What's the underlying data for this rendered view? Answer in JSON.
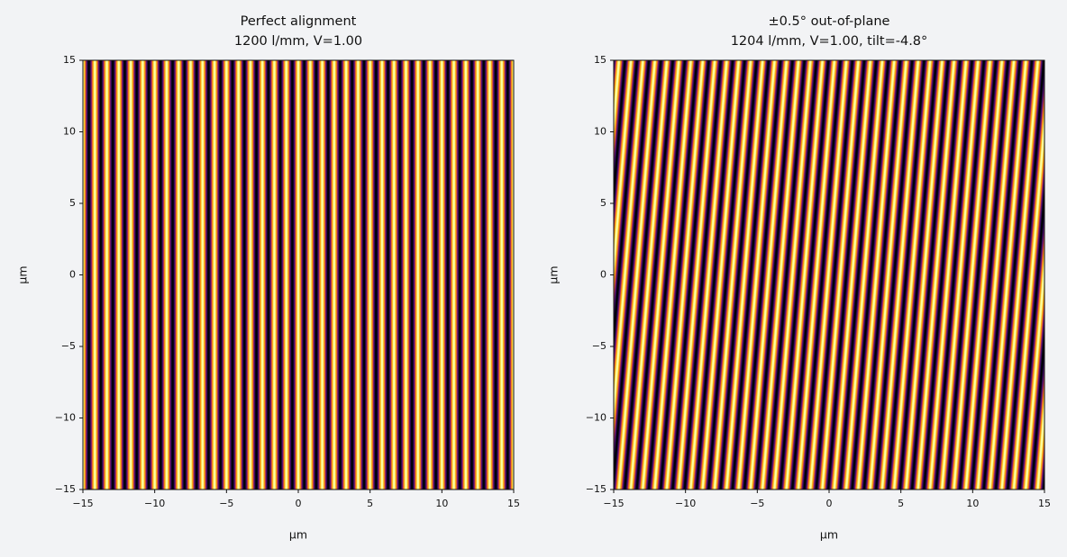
{
  "chart_data": [
    {
      "type": "fringe",
      "title": [
        "Perfect alignment",
        "1200 l/mm, V=1.00"
      ],
      "density": 1200,
      "visibility": 1.0,
      "xlabel": "µm",
      "ylabel": "µm",
      "xlim": [
        -15,
        15
      ],
      "ylim": [
        -15,
        15
      ],
      "xticks": [
        {
          "value": -15,
          "label": "−15"
        },
        {
          "value": -10,
          "label": "−10"
        },
        {
          "value": -5,
          "label": "−5"
        },
        0,
        5,
        10,
        15
      ],
      "yticks": [
        {
          "value": -15,
          "label": "−15"
        },
        {
          "value": -10,
          "label": "−10"
        },
        {
          "value": -5,
          "label": "−5"
        },
        0,
        5,
        10,
        15
      ]
    },
    {
      "type": "fringe",
      "title": [
        "±0.5° out-of-plane",
        "1204 l/mm, V=1.00, tilt=-4.8°"
      ],
      "density": 1204,
      "visibility": 1.0,
      "tilt": -4.8,
      "xlabel": "µm",
      "ylabel": "µm",
      "xlim": [
        -15,
        15
      ],
      "ylim": [
        -15,
        15
      ],
      "xticks": [
        {
          "value": -15,
          "label": "−15"
        },
        {
          "value": -10,
          "label": "−10"
        },
        {
          "value": -5,
          "label": "−5"
        },
        0,
        5,
        10,
        15
      ],
      "yticks": [
        {
          "value": -15,
          "label": "−15"
        },
        {
          "value": -10,
          "label": "−10"
        },
        {
          "value": -5,
          "label": "−5"
        },
        0,
        5,
        10,
        15
      ]
    }
  ]
}
